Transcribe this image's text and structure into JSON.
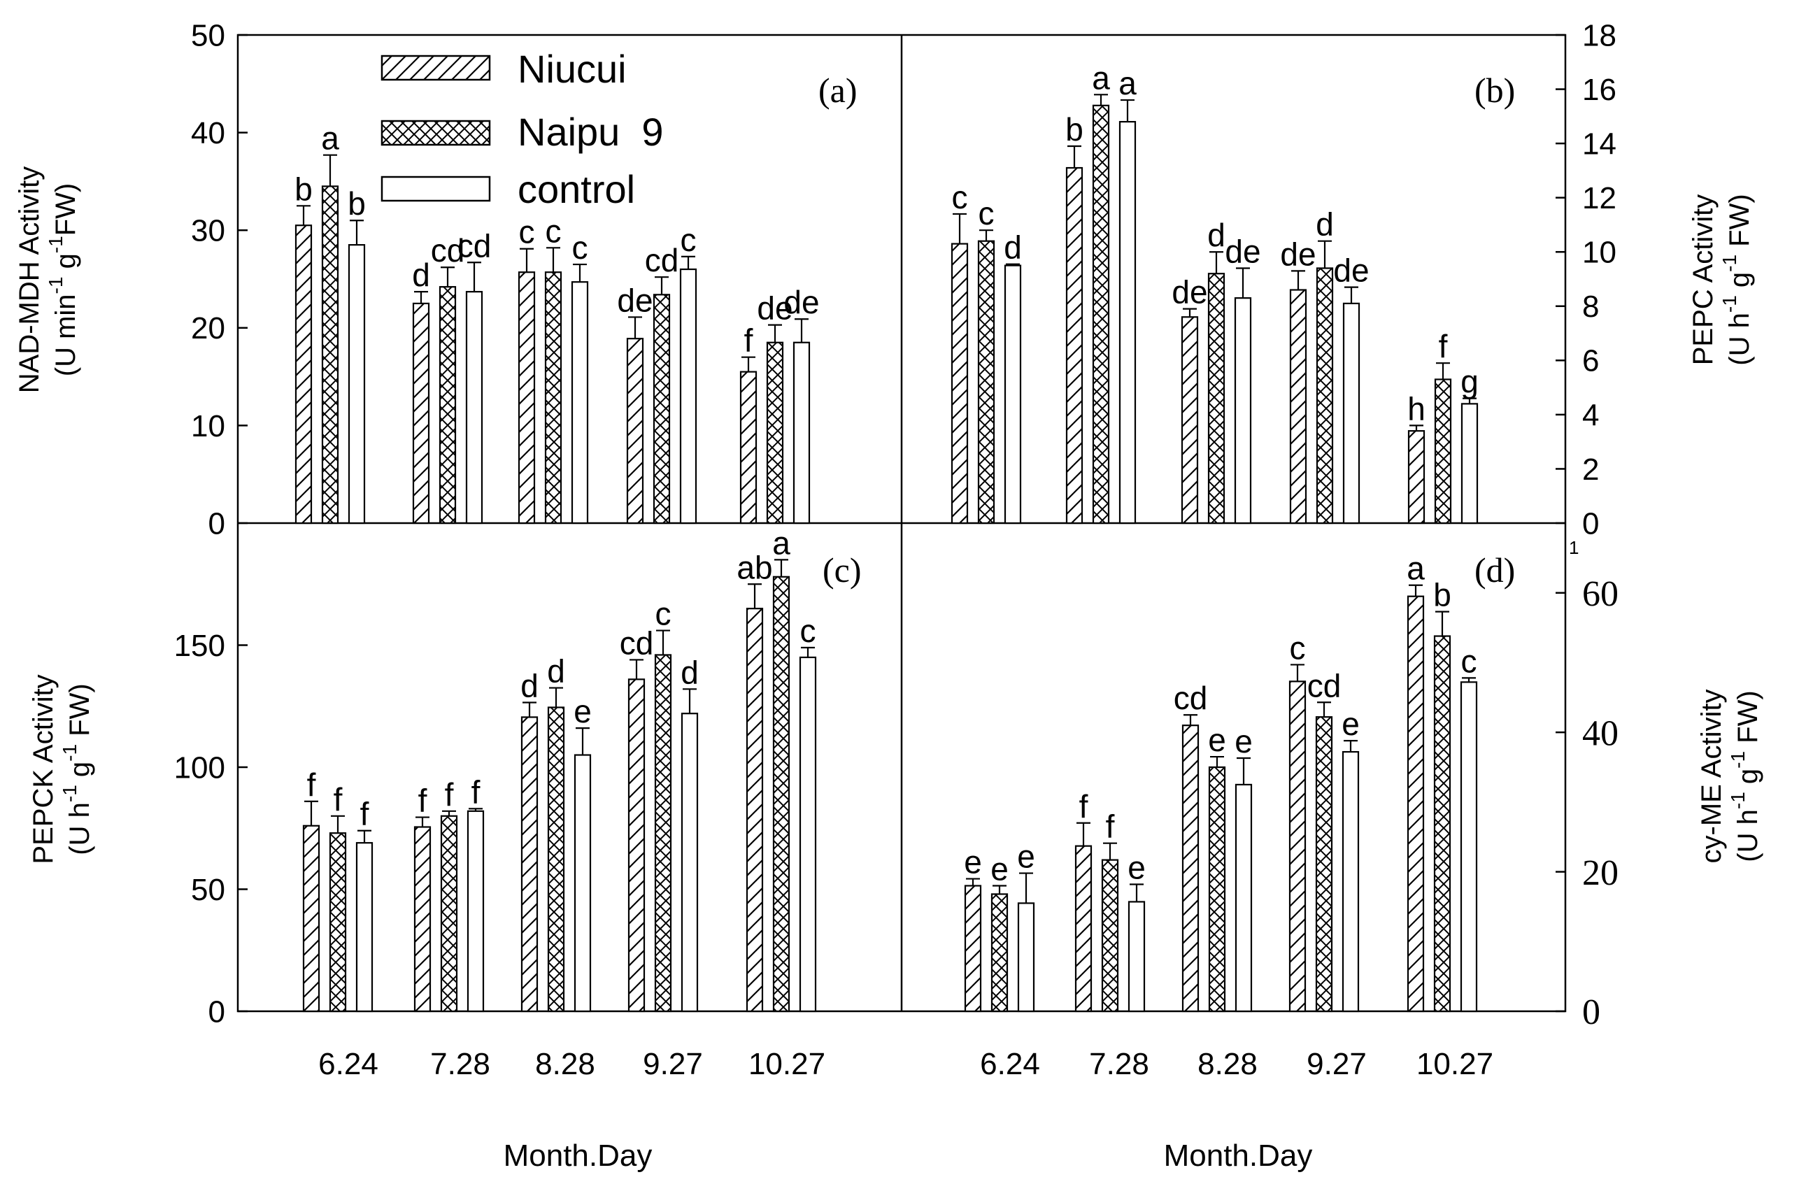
{
  "figure": {
    "categories": [
      "6.24",
      "7.28",
      "8.28",
      "9.27",
      "10.27"
    ],
    "series_names": [
      "Niucui",
      "Naipu  9",
      "control"
    ],
    "xlabel_left": "Month.Day",
    "xlabel_right": "Month.Day",
    "ylabels": {
      "a": {
        "line1": "NAD-MDH Activity",
        "line2_main": "(U min",
        "sup1": "-1",
        "mid": " g",
        "sup2": "-1",
        "end": "FW)"
      },
      "b": {
        "line1": "PEPC Activity",
        "line2_main": "(U h",
        "sup1": "-1",
        "mid": " g",
        "sup2": "-1",
        "end": " FW)"
      },
      "c": {
        "line1": "PEPCK Activity",
        "line2_main": "(U h",
        "sup1": "-1",
        "mid": " g",
        "sup2": "-1",
        "end": " FW)"
      },
      "d": {
        "line1": "cy-ME Activity",
        "line2_main": "(U h",
        "sup1": "-1",
        "mid": " g",
        "sup2": "-1",
        "end": " FW)"
      }
    },
    "stray_tick_label": "1"
  },
  "chart_data": [
    {
      "panel": "a",
      "label": "(a)",
      "type": "bar",
      "ylabel": "NAD-MDH Activity (U min-1 g-1 FW)",
      "ylim": [
        0,
        50
      ],
      "yticks": [
        0,
        10,
        20,
        30,
        40,
        50
      ],
      "yaxis": "left",
      "categories": [
        "6.24",
        "7.28",
        "8.28",
        "9.27",
        "10.27"
      ],
      "series": [
        {
          "name": "Niucui",
          "values": [
            30.5,
            22.5,
            25.7,
            18.9,
            15.5
          ],
          "errors": [
            2.0,
            1.2,
            2.4,
            2.2,
            1.5
          ],
          "letters": [
            "b",
            "d",
            "c",
            "de",
            "f"
          ]
        },
        {
          "name": "Naipu  9",
          "values": [
            34.5,
            24.2,
            25.7,
            23.4,
            18.5
          ],
          "errors": [
            3.2,
            2.0,
            2.5,
            1.8,
            1.8
          ],
          "letters": [
            "a",
            "cd",
            "c",
            "cd",
            "de"
          ]
        },
        {
          "name": "control",
          "values": [
            28.5,
            23.7,
            24.7,
            26.0,
            18.5
          ],
          "errors": [
            2.5,
            3.0,
            1.8,
            1.3,
            2.4
          ],
          "letters": [
            "b",
            "cd",
            "c",
            "c",
            "de"
          ]
        }
      ]
    },
    {
      "panel": "b",
      "label": "(b)",
      "type": "bar",
      "ylabel": "PEPC Activity (U h-1 g-1 FW)",
      "ylim": [
        0,
        18
      ],
      "yticks": [
        0,
        2,
        4,
        6,
        8,
        10,
        12,
        14,
        16,
        18
      ],
      "yaxis": "right",
      "categories": [
        "6.24",
        "7.28",
        "8.28",
        "9.27",
        "10.27"
      ],
      "series": [
        {
          "name": "Niucui",
          "values": [
            10.3,
            13.1,
            7.6,
            8.6,
            3.4
          ],
          "errors": [
            1.1,
            0.8,
            0.3,
            0.7,
            0.2
          ],
          "letters": [
            "c",
            "b",
            "de",
            "de",
            "h"
          ]
        },
        {
          "name": "Naipu  9",
          "values": [
            10.4,
            15.4,
            9.2,
            9.4,
            5.3
          ],
          "errors": [
            0.4,
            0.4,
            0.8,
            1.0,
            0.6
          ],
          "letters": [
            "c",
            "a",
            "d",
            "d",
            "f"
          ]
        },
        {
          "name": "control",
          "values": [
            9.5,
            14.8,
            8.3,
            8.1,
            4.4
          ],
          "errors": [
            0.05,
            0.8,
            1.1,
            0.6,
            0.2
          ],
          "letters": [
            "d",
            "a",
            "de",
            "de",
            "g"
          ]
        }
      ]
    },
    {
      "panel": "c",
      "label": "(c)",
      "type": "bar",
      "ylabel": "PEPCK Activity (U h-1 g-1 FW)",
      "ylim": [
        0,
        200
      ],
      "yticks": [
        0,
        50,
        100,
        150
      ],
      "yaxis": "left",
      "categories": [
        "6.24",
        "7.28",
        "8.28",
        "9.27",
        "10.27"
      ],
      "series": [
        {
          "name": "Niucui",
          "values": [
            76,
            75.5,
            120.5,
            136,
            165
          ],
          "errors": [
            10,
            4,
            6,
            8,
            10
          ],
          "letters": [
            "f",
            "f",
            "d",
            "cd",
            "ab"
          ]
        },
        {
          "name": "Naipu  9",
          "values": [
            73,
            80,
            124.5,
            146,
            178
          ],
          "errors": [
            7,
            2,
            8,
            10,
            7
          ],
          "letters": [
            "f",
            "f",
            "d",
            "c",
            "a"
          ]
        },
        {
          "name": "control",
          "values": [
            69,
            82,
            105,
            122,
            145
          ],
          "errors": [
            5,
            1,
            11,
            10,
            4
          ],
          "letters": [
            "f",
            "f",
            "e",
            "d",
            "c"
          ]
        }
      ]
    },
    {
      "panel": "d",
      "label": "(d)",
      "type": "bar",
      "ylabel": "cy-ME Activity (U h-1 g-1 FW)",
      "ylim": [
        0,
        70
      ],
      "yticks": [
        0,
        20,
        40,
        60
      ],
      "yaxis": "right",
      "categories": [
        "6.24",
        "7.28",
        "8.28",
        "9.27",
        "10.27"
      ],
      "series": [
        {
          "name": "Niucui",
          "values": [
            18,
            23.7,
            41,
            47.3,
            59.5
          ],
          "errors": [
            1.0,
            3.3,
            1.5,
            2.4,
            1.6
          ],
          "letters": [
            "e",
            "f",
            "cd",
            "c",
            "a"
          ]
        },
        {
          "name": "Naipu  9",
          "values": [
            16.8,
            21.7,
            35,
            42.2,
            53.8
          ],
          "errors": [
            1.2,
            2.4,
            1.5,
            2.1,
            3.5
          ],
          "letters": [
            "e",
            "f",
            "e",
            "cd",
            "b"
          ]
        },
        {
          "name": "control",
          "values": [
            15.5,
            15.7,
            32.5,
            37.2,
            47.2
          ],
          "errors": [
            4.3,
            2.5,
            3.8,
            1.6,
            0.6
          ],
          "letters": [
            "e",
            "e",
            "e",
            "e",
            "c"
          ]
        }
      ]
    }
  ]
}
